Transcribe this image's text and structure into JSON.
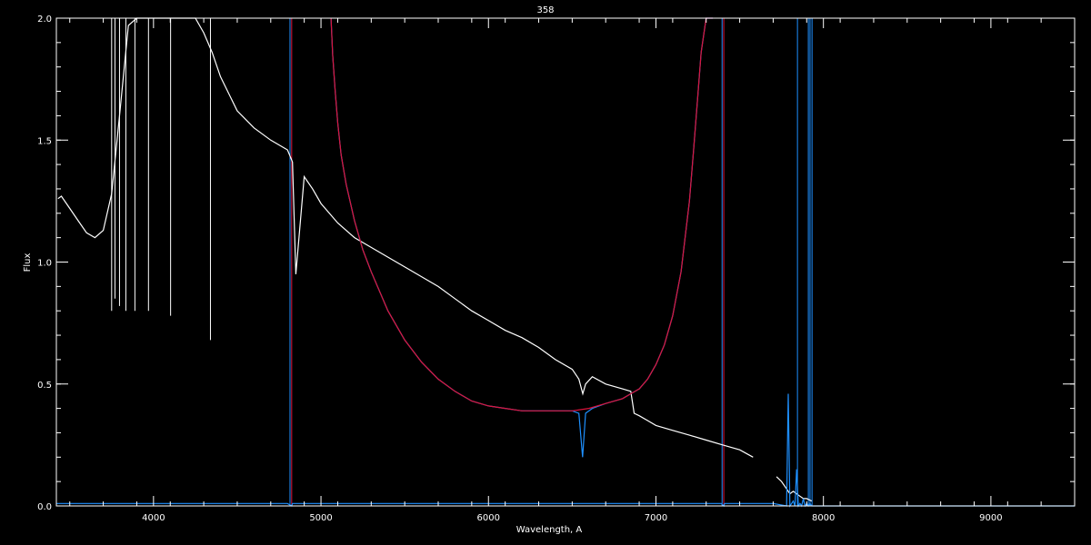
{
  "chart_data": {
    "type": "line",
    "title": "358",
    "xlabel": "Wavelength, A",
    "ylabel": "Flux",
    "xlim": [
      3420,
      9500
    ],
    "ylim": [
      0.0,
      2.0
    ],
    "xticks": [
      4000,
      5000,
      6000,
      7000,
      8000,
      9000
    ],
    "yticks": [
      0.0,
      0.5,
      1.0,
      1.5,
      2.0
    ],
    "ytick_labels": [
      "0.0",
      "0.5",
      "1.0",
      "1.5",
      "2.0"
    ],
    "grid": false,
    "legend": "none",
    "colors": {
      "background": "#000000",
      "axes": "#ffffff",
      "spectrum": "#ffffff",
      "observed": "#1e90ff",
      "model": "#dc143c"
    },
    "series": [
      {
        "color": "#ffffff",
        "x": [
          3430,
          3450,
          3500,
          3550,
          3600,
          3650,
          3700,
          3750,
          3800,
          3850,
          3900,
          3950,
          4000,
          4100,
          4200,
          4250,
          4300,
          4350,
          4400,
          4500,
          4600,
          4700,
          4800,
          4830,
          4850,
          4900,
          4950,
          5000,
          5100,
          5200,
          5300,
          5400,
          5500,
          5600,
          5700,
          5800,
          5900,
          6000,
          6100,
          6200,
          6300,
          6400,
          6500,
          6540,
          6563,
          6580,
          6620,
          6700,
          6800,
          6850,
          6870,
          6900,
          6950,
          7000,
          7100,
          7200,
          7300,
          7400,
          7500,
          7580
        ],
        "y": [
          1.26,
          1.27,
          1.22,
          1.17,
          1.12,
          1.1,
          1.13,
          1.28,
          1.62,
          1.97,
          2.0,
          2.0,
          2.0,
          2.0,
          2.0,
          2.0,
          1.94,
          1.86,
          1.76,
          1.62,
          1.55,
          1.5,
          1.46,
          1.41,
          0.95,
          1.35,
          1.3,
          1.24,
          1.16,
          1.1,
          1.06,
          1.02,
          0.98,
          0.94,
          0.9,
          0.85,
          0.8,
          0.76,
          0.72,
          0.69,
          0.65,
          0.6,
          0.56,
          0.52,
          0.46,
          0.5,
          0.53,
          0.5,
          0.48,
          0.47,
          0.38,
          0.37,
          0.35,
          0.33,
          0.31,
          0.29,
          0.27,
          0.25,
          0.23,
          0.2
        ]
      },
      {
        "color": "#ffffff",
        "x": [
          7720,
          7750,
          7780,
          7800,
          7820,
          7840,
          7860,
          7880,
          7900,
          7930
        ],
        "y": [
          0.12,
          0.1,
          0.07,
          0.05,
          0.06,
          0.05,
          0.04,
          0.03,
          0.03,
          0.02
        ]
      },
      {
        "color": "#1e90ff",
        "x": [
          5060,
          5070,
          5085,
          5100,
          5120,
          5150,
          5200,
          5250,
          5300,
          5400,
          5500,
          5600,
          5700,
          5800,
          5900,
          6000,
          6100,
          6200,
          6300,
          6400,
          6500,
          6540,
          6562,
          6580,
          6620,
          6700,
          6800,
          6850,
          6900,
          6950,
          7000,
          7050,
          7100,
          7150,
          7200,
          7225,
          7250,
          7270,
          7300,
          7320,
          7340
        ],
        "y": [
          2.0,
          1.85,
          1.7,
          1.57,
          1.44,
          1.32,
          1.17,
          1.05,
          0.96,
          0.8,
          0.68,
          0.59,
          0.52,
          0.47,
          0.43,
          0.41,
          0.4,
          0.39,
          0.39,
          0.39,
          0.39,
          0.38,
          0.2,
          0.38,
          0.4,
          0.42,
          0.44,
          0.46,
          0.48,
          0.52,
          0.58,
          0.66,
          0.78,
          0.96,
          1.25,
          1.46,
          1.68,
          1.86,
          2.0,
          2.0,
          2.0
        ]
      },
      {
        "color": "#dc143c",
        "x": [
          5060,
          5070,
          5085,
          5100,
          5120,
          5150,
          5200,
          5250,
          5300,
          5400,
          5500,
          5600,
          5700,
          5800,
          5900,
          6000,
          6100,
          6200,
          6300,
          6400,
          6500,
          6600,
          6700,
          6800,
          6850,
          6900,
          6950,
          7000,
          7050,
          7100,
          7150,
          7200,
          7225,
          7250,
          7270,
          7300,
          7320,
          7340
        ],
        "y": [
          2.0,
          1.85,
          1.7,
          1.57,
          1.44,
          1.32,
          1.17,
          1.05,
          0.96,
          0.8,
          0.68,
          0.59,
          0.52,
          0.47,
          0.43,
          0.41,
          0.4,
          0.39,
          0.39,
          0.39,
          0.39,
          0.4,
          0.42,
          0.44,
          0.46,
          0.48,
          0.52,
          0.58,
          0.66,
          0.78,
          0.96,
          1.25,
          1.46,
          1.68,
          1.86,
          2.0,
          2.0,
          2.0
        ]
      },
      {
        "color": "#1e90ff",
        "x": [
          3420,
          4800,
          4825,
          4830,
          7390,
          7405,
          7410,
          7700,
          7780,
          7790,
          7800,
          7810,
          7820,
          7830,
          7840,
          7850,
          7860,
          7870,
          7880,
          7890,
          7900,
          7910,
          7920,
          7930,
          7940,
          7950,
          8000,
          9500
        ],
        "y": [
          0.01,
          0.01,
          0.0,
          0.01,
          0.01,
          0.0,
          0.01,
          0.01,
          0.0,
          0.46,
          0.0,
          0.01,
          0.02,
          0.0,
          0.15,
          0.0,
          0.01,
          0.0,
          0.03,
          0.0,
          0.01,
          0.0,
          0.01,
          0.0,
          0.0,
          0.0,
          0.0,
          0.0
        ]
      }
    ],
    "vlines": [
      {
        "x": 4815,
        "color": "#1e90ff"
      },
      {
        "x": 4825,
        "color": "#dc143c"
      },
      {
        "x": 7395,
        "color": "#1e90ff"
      },
      {
        "x": 7405,
        "color": "#dc143c"
      },
      {
        "x": 7845,
        "color": "#1e90ff"
      },
      {
        "x": 7910,
        "color": "#1e90ff"
      },
      {
        "x": 7920,
        "color": "#1e90ff"
      },
      {
        "x": 7932,
        "color": "#1e90ff"
      }
    ],
    "absorption_lines": [
      {
        "x": 3750,
        "y": 0.8
      },
      {
        "x": 3770,
        "y": 0.85
      },
      {
        "x": 3797,
        "y": 0.82
      },
      {
        "x": 3835,
        "y": 0.8
      },
      {
        "x": 3889,
        "y": 0.8
      },
      {
        "x": 3970,
        "y": 0.8
      },
      {
        "x": 4102,
        "y": 0.78
      },
      {
        "x": 4340,
        "y": 0.68
      }
    ]
  }
}
